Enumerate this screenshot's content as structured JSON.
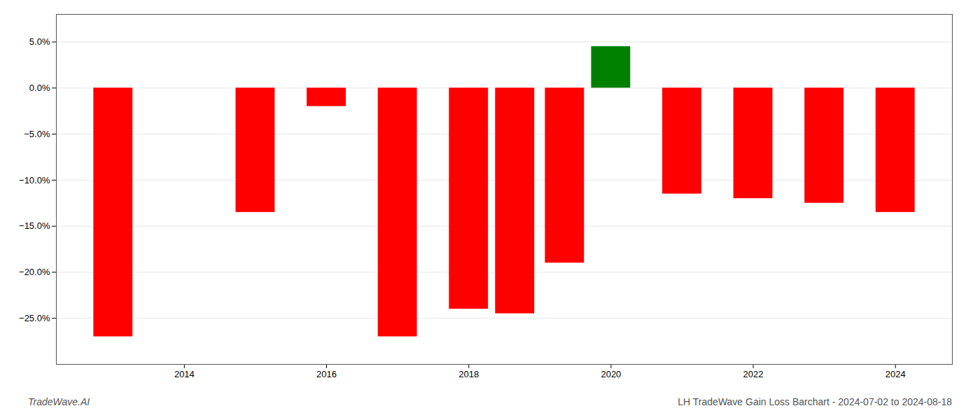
{
  "chart_data": {
    "type": "bar",
    "title": "LH TradeWave Gain Loss Barchart - 2024-07-02 to 2024-08-18",
    "watermark": "TradeWave.AI",
    "x": [
      2013,
      2015,
      2016,
      2017,
      2018,
      2018.65,
      2019.35,
      2020,
      2021,
      2022,
      2023,
      2024
    ],
    "values": [
      -0.27,
      -0.135,
      -0.02,
      -0.27,
      -0.24,
      -0.245,
      -0.19,
      0.045,
      -0.115,
      -0.12,
      -0.125,
      -0.135
    ],
    "colors": [
      "#ff0000",
      "#ff0000",
      "#ff0000",
      "#ff0000",
      "#ff0000",
      "#ff0000",
      "#ff0000",
      "#008000",
      "#ff0000",
      "#ff0000",
      "#ff0000",
      "#ff0000"
    ],
    "xlim": [
      2012.2,
      2024.8
    ],
    "xticks": [
      2014,
      2016,
      2018,
      2020,
      2022,
      2024
    ],
    "ylim": [
      -0.3,
      0.08
    ],
    "yticks": [
      {
        "value": -0.25,
        "label": "−25.0%"
      },
      {
        "value": -0.2,
        "label": "−20.0%"
      },
      {
        "value": -0.15,
        "label": "−15.0%"
      },
      {
        "value": -0.1,
        "label": "−10.0%"
      },
      {
        "value": -0.05,
        "label": "−5.0%"
      },
      {
        "value": 0.0,
        "label": "0.0%"
      },
      {
        "value": 0.05,
        "label": "5.0%"
      }
    ],
    "grid": true
  }
}
